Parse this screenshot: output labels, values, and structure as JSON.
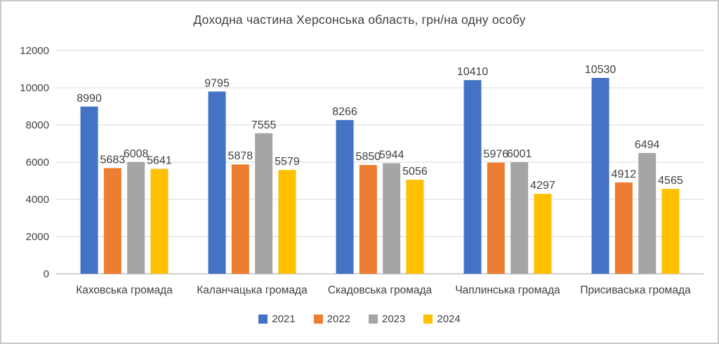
{
  "chart_data": {
    "type": "bar",
    "title": "Доходна частина Херсонська область, грн/на одну особу",
    "categories": [
      "Каховська громада",
      "Каланчацька громада",
      "Скадовська громада",
      "Чаплинська громада",
      "Присиваська громада"
    ],
    "series": [
      {
        "name": "2021",
        "color": "#4472C4",
        "values": [
          8990,
          9795,
          8266,
          10410,
          10530
        ]
      },
      {
        "name": "2022",
        "color": "#ED7D31",
        "values": [
          5683,
          5878,
          5850,
          5976,
          4912
        ]
      },
      {
        "name": "2023",
        "color": "#A5A5A5",
        "values": [
          6008,
          7555,
          5944,
          6001,
          6494
        ]
      },
      {
        "name": "2024",
        "color": "#FFC000",
        "values": [
          5641,
          5579,
          5056,
          4297,
          4565
        ]
      }
    ],
    "ylim": [
      0,
      12000
    ],
    "yticks": [
      0,
      2000,
      4000,
      6000,
      8000,
      10000,
      12000
    ],
    "grid": "horizontal",
    "legend_position": "bottom",
    "data_labels": true,
    "grid_color": "#d9d9d9",
    "axis_line_color": "#bfbfbf",
    "text_color": "#404040"
  }
}
